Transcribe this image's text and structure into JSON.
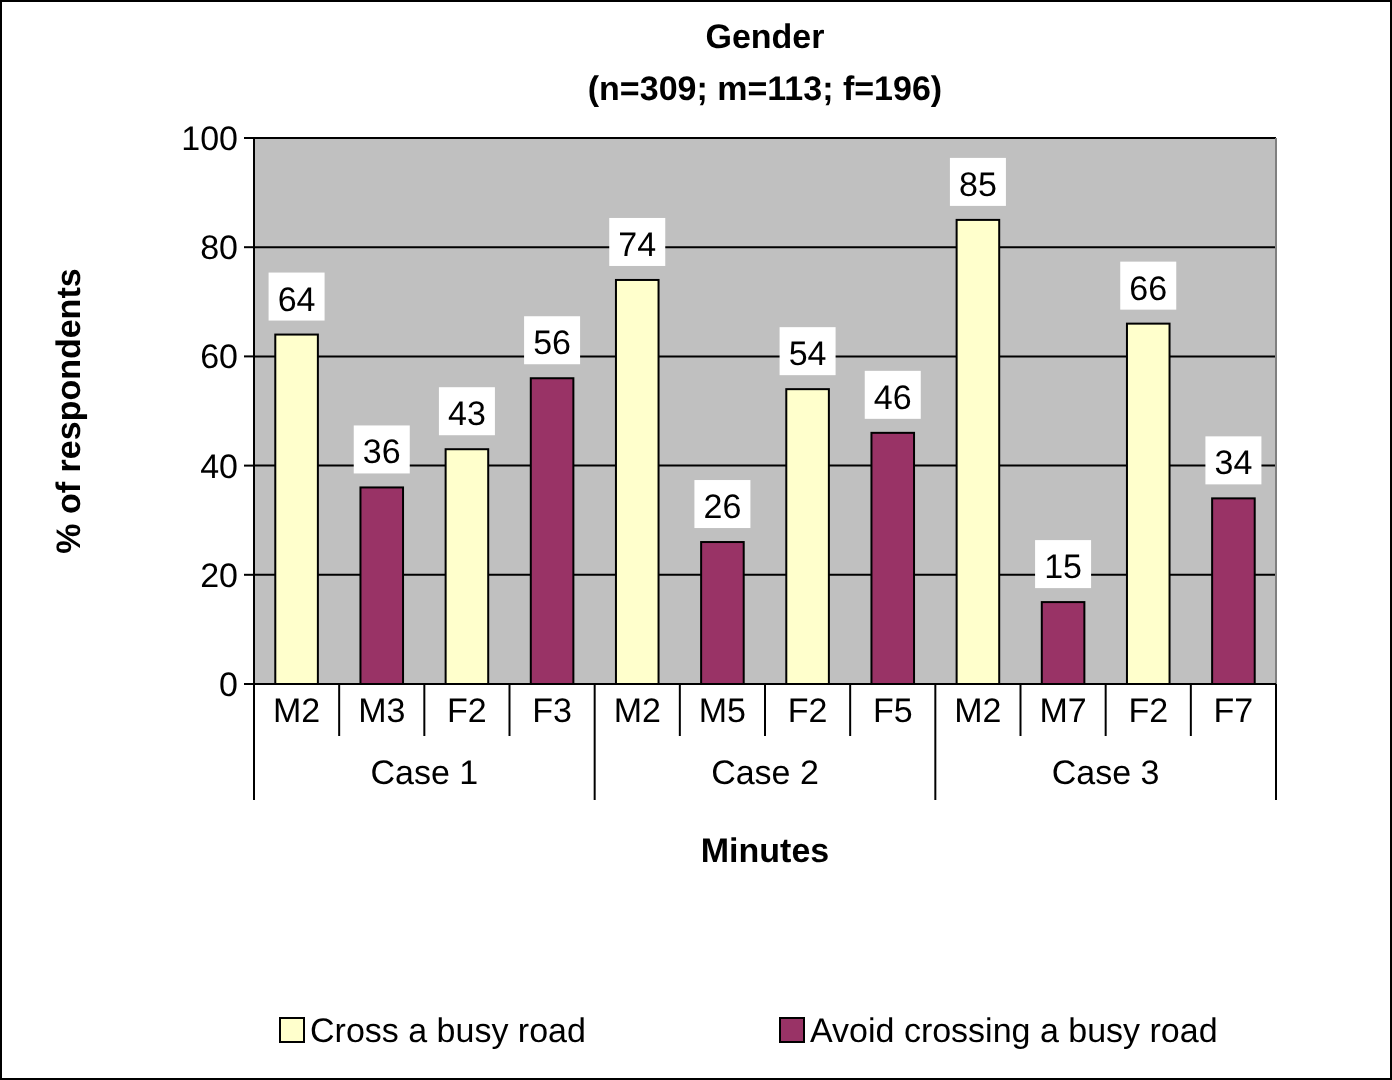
{
  "chart_data": {
    "type": "bar",
    "title": "Gender",
    "subtitle": "(n=309; m=113; f=196)",
    "xlabel": "Minutes",
    "ylabel": "% of respondents",
    "categories": [
      "M2",
      "M3",
      "F2",
      "F3",
      "M2",
      "M5",
      "F2",
      "F5",
      "M2",
      "M7",
      "F2",
      "F7"
    ],
    "annotations": [
      "Case 1",
      "Case 2",
      "Case 3"
    ],
    "series": [
      {
        "name": "Cross a busy road",
        "color": "#ffffcc",
        "values": [
          64,
          null,
          43,
          null,
          74,
          null,
          54,
          null,
          85,
          null,
          66,
          null
        ]
      },
      {
        "name": "Avoid crossing a busy road",
        "color": "#993366",
        "values": [
          null,
          36,
          null,
          56,
          null,
          26,
          null,
          46,
          null,
          15,
          null,
          34
        ]
      }
    ],
    "ylim": [
      0,
      100
    ],
    "yticks": [
      0,
      20,
      40,
      60,
      80,
      100
    ],
    "grid": "y",
    "legend": "bottom",
    "data_labels": true
  }
}
